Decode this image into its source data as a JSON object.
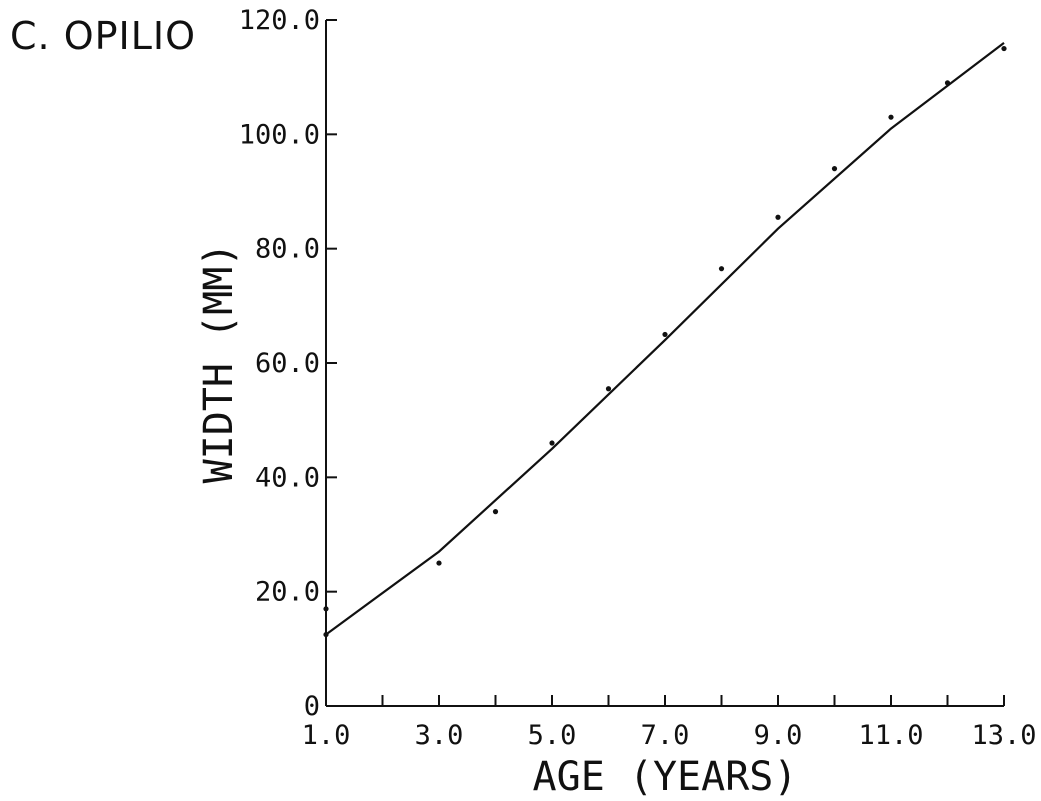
{
  "chart_data": {
    "type": "line",
    "title": "C. OPILIO",
    "xlabel": "AGE (YEARS)",
    "ylabel": "WIDTH (MM)",
    "xlim": [
      1.0,
      13.0
    ],
    "ylim": [
      0,
      120.0
    ],
    "x_ticks": [
      1.0,
      2.0,
      3.0,
      4.0,
      5.0,
      6.0,
      7.0,
      8.0,
      9.0,
      10.0,
      11.0,
      12.0,
      13.0
    ],
    "x_tick_labels": [
      "1.0",
      "3.0",
      "5.0",
      "7.0",
      "9.0",
      "11.0",
      "13.0"
    ],
    "x_tick_label_values": [
      1.0,
      3.0,
      5.0,
      7.0,
      9.0,
      11.0,
      13.0
    ],
    "y_ticks": [
      0,
      20.0,
      40.0,
      60.0,
      80.0,
      100.0,
      120.0
    ],
    "y_tick_labels": [
      "0",
      "20.0",
      "40.0",
      "60.0",
      "80.0",
      "100.0",
      "120.0"
    ],
    "grid": false,
    "series": [
      {
        "kind": "points",
        "x": [
          1.0,
          1.0,
          3.0,
          4.0,
          5.0,
          6.0,
          7.0,
          8.0,
          9.0,
          10.0,
          11.0,
          12.0,
          13.0
        ],
        "y": [
          12.5,
          17.0,
          25.0,
          34.0,
          46.0,
          55.5,
          65.0,
          76.5,
          85.5,
          94.0,
          103.0,
          109.0,
          115.0
        ]
      },
      {
        "kind": "curve",
        "x": [
          1.0,
          3.0,
          5.0,
          7.0,
          9.0,
          11.0,
          13.0
        ],
        "y": [
          12.5,
          27.0,
          45.0,
          64.0,
          83.5,
          101.0,
          116.0
        ]
      }
    ]
  }
}
